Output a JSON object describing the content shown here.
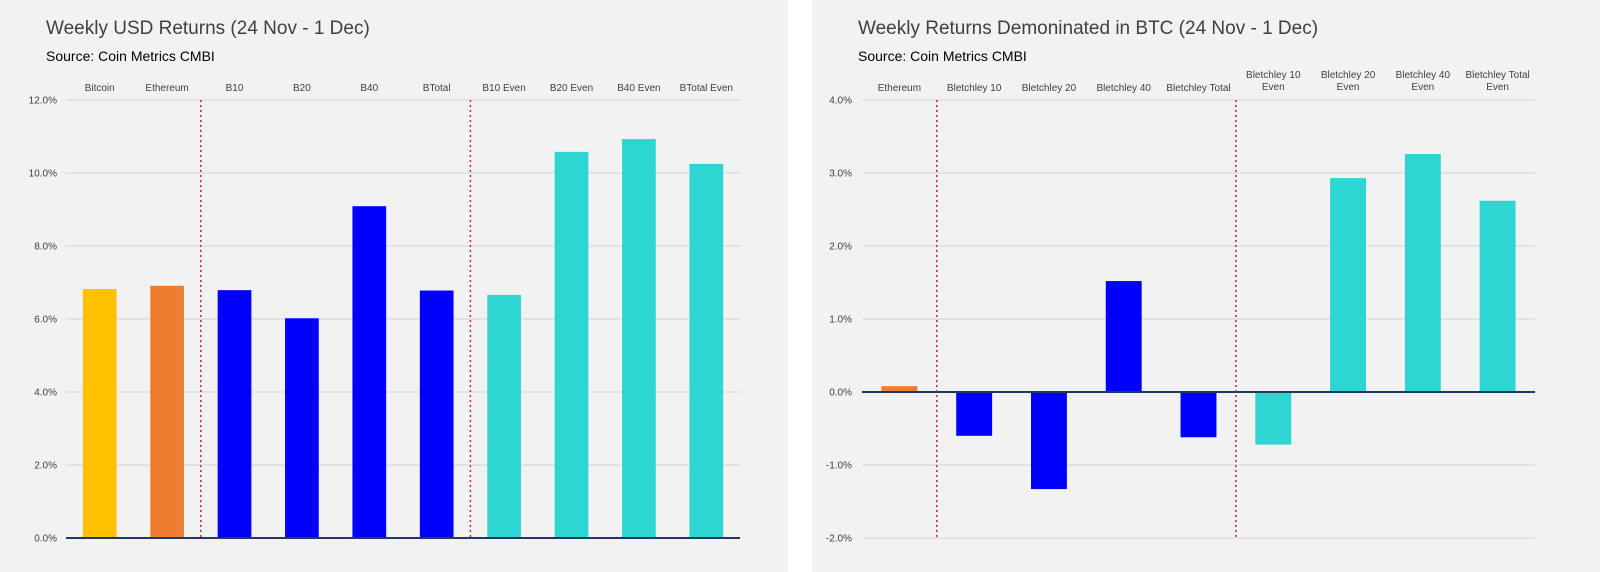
{
  "chart_data": [
    {
      "type": "bar",
      "title": "Weekly USD Returns (24 Nov - 1 Dec)",
      "subtitle": "Source: Coin Metrics CMBI",
      "categories": [
        "Bitcoin",
        "Ethereum",
        "B10",
        "B20",
        "B40",
        "BTotal",
        "B10 Even",
        "B20 Even",
        "B40 Even",
        "BTotal Even"
      ],
      "values": [
        6.82,
        6.91,
        6.79,
        6.02,
        9.09,
        6.78,
        6.66,
        10.58,
        10.93,
        10.25
      ],
      "colors": [
        "#ffc000",
        "#ed7d31",
        "#0000ff",
        "#0000ff",
        "#0000ff",
        "#0000ff",
        "#2dd6d3",
        "#2dd6d3",
        "#2dd6d3",
        "#2dd6d3"
      ],
      "ylim": [
        0,
        12
      ],
      "yticks": [
        "0.0%",
        "2.0%",
        "4.0%",
        "6.0%",
        "8.0%",
        "10.0%",
        "12.0%"
      ],
      "grid": true,
      "separators_after": [
        2,
        6
      ]
    },
    {
      "type": "bar",
      "title": "Weekly Returns Demoninated in BTC (24 Nov - 1 Dec)",
      "subtitle": "Source: Coin Metrics CMBI",
      "categories": [
        "Ethereum",
        "Bletchley 10",
        "Bletchley 20",
        "Bletchley 40",
        "Bletchley Total",
        "Bletchley 10 Even",
        "Bletchley 20 Even",
        "Bletchley 40 Even",
        "Bletchley Total Even"
      ],
      "values": [
        0.08,
        -0.6,
        -1.33,
        1.52,
        -0.62,
        -0.72,
        2.93,
        3.26,
        2.62
      ],
      "colors": [
        "#ed7d31",
        "#0000ff",
        "#0000ff",
        "#0000ff",
        "#0000ff",
        "#2dd6d3",
        "#2dd6d3",
        "#2dd6d3",
        "#2dd6d3"
      ],
      "ylim": [
        -2,
        4
      ],
      "yticks": [
        "-2.0%",
        "-1.0%",
        "0.0%",
        "1.0%",
        "2.0%",
        "3.0%",
        "4.0%"
      ],
      "grid": true,
      "separators_after": [
        1,
        5
      ]
    }
  ]
}
